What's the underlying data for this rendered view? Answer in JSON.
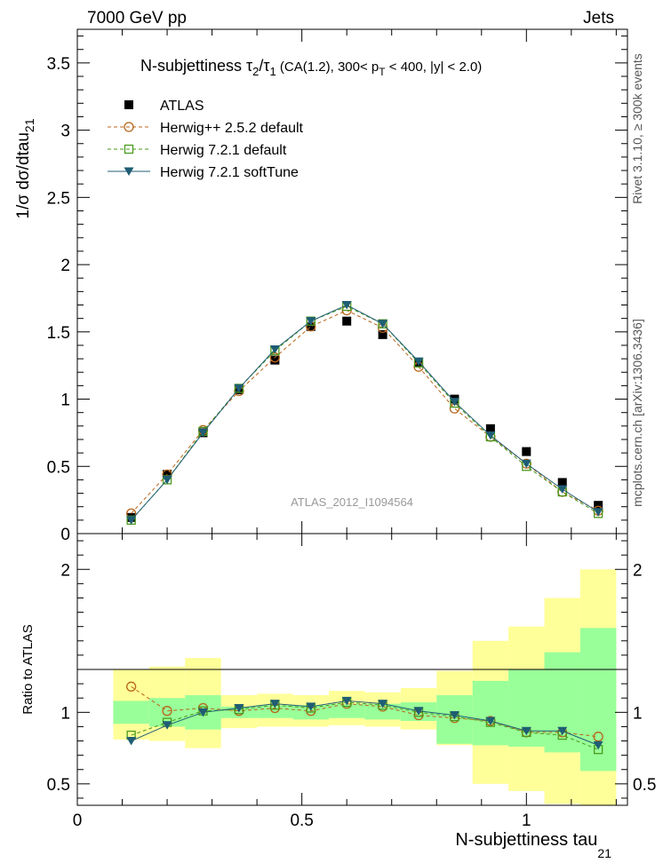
{
  "header": {
    "left": "7000 GeV pp",
    "right": "Jets"
  },
  "side_labels": {
    "rivet": "Rivet 3.1.10, ≥ 300k events",
    "mcplots": "mcplots.cern.ch [arXiv:1306.3436]"
  },
  "colors": {
    "atlas": "#000000",
    "herwigpp": "#b8651b",
    "herwig721": "#4a9a1e",
    "softtune": "#1f5d74",
    "band_inner": "#99ff99",
    "band_outer": "#ffff99"
  },
  "chart_data": [
    {
      "type": "scatter",
      "panel": "main",
      "title": "N-subjettiness  τ₂/τ₁ (CA(1.2), 300< p_T < 400, |y| < 2.0)",
      "title_parts": {
        "prefix": "N-subjettiness  τ",
        "s1": "2",
        "mid": "/τ",
        "s2": "1",
        "tail1": " (CA(1.2), 300< p",
        "s3": "T",
        "tail2": " < 400, |y| < 2.0)"
      },
      "ylabel": "1/σ dσ/dtau_21",
      "ylabel_parts": {
        "main": "1/σ dσ/dtau",
        "sub": "21"
      },
      "xlim": [
        0,
        1.225
      ],
      "ylim": [
        0,
        3.75
      ],
      "yticks": [
        {
          "v": 0,
          "label": "0"
        },
        {
          "v": 0.5,
          "label": "0.5"
        },
        {
          "v": 1,
          "label": "1"
        },
        {
          "v": 1.5,
          "label": "1.5"
        },
        {
          "v": 2,
          "label": "2"
        },
        {
          "v": 2.5,
          "label": "2.5"
        },
        {
          "v": 3,
          "label": "3"
        },
        {
          "v": 3.5,
          "label": "3.5"
        }
      ],
      "watermark": "ATLAS_2012_I1094564",
      "x": [
        0.12,
        0.2,
        0.28,
        0.36,
        0.44,
        0.52,
        0.6,
        0.68,
        0.76,
        0.84,
        0.92,
        1.0,
        1.08,
        1.16
      ],
      "series": [
        {
          "name": "ATLAS",
          "key": "atlas",
          "marker": "square-filled",
          "values": [
            0.12,
            0.44,
            0.75,
            1.07,
            1.29,
            1.54,
            1.58,
            1.48,
            1.27,
            1.0,
            0.78,
            0.61,
            0.38,
            0.21
          ]
        },
        {
          "name": "Herwig++ 2.5.2 default",
          "key": "herwigpp",
          "marker": "circle-open",
          "values": [
            0.15,
            0.44,
            0.77,
            1.06,
            1.31,
            1.54,
            1.66,
            1.53,
            1.24,
            0.93,
            0.72,
            0.52,
            0.31,
            0.17
          ]
        },
        {
          "name": "Herwig 7.2.1 default",
          "key": "herwig721",
          "marker": "square-open",
          "values": [
            0.1,
            0.4,
            0.76,
            1.08,
            1.36,
            1.58,
            1.69,
            1.56,
            1.27,
            0.97,
            0.72,
            0.5,
            0.31,
            0.15
          ]
        },
        {
          "name": "Herwig 7.2.1 softTune",
          "key": "softtune",
          "marker": "triangle-down",
          "values": [
            0.1,
            0.4,
            0.75,
            1.08,
            1.37,
            1.58,
            1.7,
            1.56,
            1.28,
            0.98,
            0.73,
            0.52,
            0.33,
            0.16
          ]
        }
      ]
    },
    {
      "type": "scatter",
      "panel": "ratio",
      "ylabel": "Ratio to ATLAS",
      "xlabel": "N-subjettiness tau_21",
      "xlabel_parts": {
        "main": "N-subjettiness tau",
        "sub": "21"
      },
      "xlim": [
        0,
        1.225
      ],
      "ylim": [
        0.35,
        2.25
      ],
      "xticks": [
        {
          "v": 0,
          "label": "0"
        },
        {
          "v": 0.5,
          "label": "0.5"
        },
        {
          "v": 1,
          "label": "1"
        }
      ],
      "yticks": [
        {
          "v": 0.5,
          "label": "0.5"
        },
        {
          "v": 1,
          "label": "1"
        },
        {
          "v": 2,
          "label": "2"
        }
      ],
      "bins": [
        [
          0.08,
          0.16
        ],
        [
          0.16,
          0.24
        ],
        [
          0.24,
          0.32
        ],
        [
          0.32,
          0.4
        ],
        [
          0.4,
          0.48
        ],
        [
          0.48,
          0.56
        ],
        [
          0.56,
          0.64
        ],
        [
          0.64,
          0.72
        ],
        [
          0.72,
          0.8
        ],
        [
          0.8,
          0.88
        ],
        [
          0.88,
          0.96
        ],
        [
          0.96,
          1.04
        ],
        [
          1.04,
          1.12
        ],
        [
          1.12,
          1.2
        ]
      ],
      "band_inner": [
        [
          0.92,
          1.08
        ],
        [
          0.9,
          1.1
        ],
        [
          0.88,
          1.12
        ],
        [
          0.96,
          1.04
        ],
        [
          0.96,
          1.05
        ],
        [
          0.95,
          1.05
        ],
        [
          0.96,
          1.06
        ],
        [
          0.95,
          1.06
        ],
        [
          0.94,
          1.07
        ],
        [
          0.78,
          1.12
        ],
        [
          0.77,
          1.22
        ],
        [
          0.76,
          1.3
        ],
        [
          0.72,
          1.42
        ],
        [
          0.59,
          1.59
        ]
      ],
      "band_outer": [
        [
          0.81,
          1.3
        ],
        [
          0.8,
          1.32
        ],
        [
          0.75,
          1.38
        ],
        [
          0.89,
          1.12
        ],
        [
          0.9,
          1.13
        ],
        [
          0.9,
          1.12
        ],
        [
          0.91,
          1.15
        ],
        [
          0.9,
          1.14
        ],
        [
          0.88,
          1.17
        ],
        [
          0.77,
          1.29
        ],
        [
          0.5,
          1.5
        ],
        [
          0.45,
          1.6
        ],
        [
          0.36,
          1.8
        ],
        [
          0.35,
          2.0
        ]
      ],
      "x": [
        0.12,
        0.2,
        0.28,
        0.36,
        0.44,
        0.52,
        0.6,
        0.68,
        0.76,
        0.84,
        0.92,
        1.0,
        1.08,
        1.16
      ],
      "series": [
        {
          "name": "Herwig++ 2.5.2 default",
          "key": "herwigpp",
          "marker": "circle-open",
          "values": [
            1.18,
            1.01,
            1.03,
            1.01,
            1.03,
            1.01,
            1.06,
            1.04,
            0.98,
            0.96,
            0.94,
            0.86,
            0.86,
            0.83
          ]
        },
        {
          "name": "Herwig 7.2.1 default",
          "key": "herwig721",
          "marker": "square-open",
          "values": [
            0.84,
            0.93,
            1.01,
            1.02,
            1.05,
            1.03,
            1.07,
            1.05,
            1.0,
            0.97,
            0.93,
            0.86,
            0.84,
            0.74
          ]
        },
        {
          "name": "Herwig 7.2.1 softTune",
          "key": "softtune",
          "marker": "triangle-down",
          "values": [
            0.8,
            0.91,
            1.0,
            1.03,
            1.06,
            1.04,
            1.08,
            1.06,
            1.01,
            0.98,
            0.94,
            0.87,
            0.87,
            0.77
          ]
        }
      ]
    }
  ]
}
